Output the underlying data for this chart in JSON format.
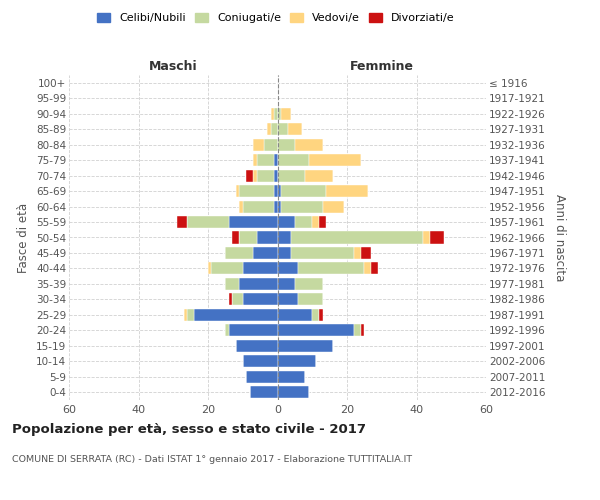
{
  "age_groups": [
    "0-4",
    "5-9",
    "10-14",
    "15-19",
    "20-24",
    "25-29",
    "30-34",
    "35-39",
    "40-44",
    "45-49",
    "50-54",
    "55-59",
    "60-64",
    "65-69",
    "70-74",
    "75-79",
    "80-84",
    "85-89",
    "90-94",
    "95-99",
    "100+"
  ],
  "birth_years": [
    "2012-2016",
    "2007-2011",
    "2002-2006",
    "1997-2001",
    "1992-1996",
    "1987-1991",
    "1982-1986",
    "1977-1981",
    "1972-1976",
    "1967-1971",
    "1962-1966",
    "1957-1961",
    "1952-1956",
    "1947-1951",
    "1942-1946",
    "1937-1941",
    "1932-1936",
    "1927-1931",
    "1922-1926",
    "1917-1921",
    "≤ 1916"
  ],
  "maschi": {
    "celibi": [
      8,
      9,
      10,
      12,
      14,
      24,
      10,
      11,
      10,
      7,
      6,
      14,
      1,
      1,
      1,
      1,
      0,
      0,
      0,
      0,
      0
    ],
    "coniugati": [
      0,
      0,
      0,
      0,
      1,
      2,
      3,
      4,
      9,
      8,
      5,
      12,
      9,
      10,
      5,
      5,
      4,
      2,
      1,
      0,
      0
    ],
    "vedovi": [
      0,
      0,
      0,
      0,
      0,
      1,
      0,
      0,
      1,
      0,
      0,
      0,
      1,
      1,
      1,
      1,
      3,
      1,
      1,
      0,
      0
    ],
    "divorziati": [
      0,
      0,
      0,
      0,
      0,
      0,
      1,
      0,
      0,
      0,
      2,
      3,
      0,
      0,
      2,
      0,
      0,
      0,
      0,
      0,
      0
    ]
  },
  "femmine": {
    "nubili": [
      9,
      8,
      11,
      16,
      22,
      10,
      6,
      5,
      6,
      4,
      4,
      5,
      1,
      1,
      0,
      0,
      0,
      0,
      0,
      0,
      0
    ],
    "coniugate": [
      0,
      0,
      0,
      0,
      2,
      2,
      7,
      8,
      19,
      18,
      38,
      5,
      12,
      13,
      8,
      9,
      5,
      3,
      1,
      0,
      0
    ],
    "vedove": [
      0,
      0,
      0,
      0,
      0,
      0,
      0,
      0,
      2,
      2,
      2,
      2,
      6,
      12,
      8,
      15,
      8,
      4,
      3,
      0,
      0
    ],
    "divorziate": [
      0,
      0,
      0,
      0,
      1,
      1,
      0,
      0,
      2,
      3,
      4,
      2,
      0,
      0,
      0,
      0,
      0,
      0,
      0,
      0,
      0
    ]
  },
  "colors": {
    "celibi_nubili": "#4472C4",
    "coniugati": "#C5D9A0",
    "vedovi": "#FFD580",
    "divorziati": "#CC1111"
  },
  "xlim": 60,
  "title": "Popolazione per età, sesso e stato civile - 2017",
  "subtitle": "COMUNE DI SERRATA (RC) - Dati ISTAT 1° gennaio 2017 - Elaborazione TUTTITALIA.IT",
  "ylabel_left": "Fasce di età",
  "ylabel_right": "Anni di nascita",
  "xlabel_maschi": "Maschi",
  "xlabel_femmine": "Femmine",
  "background_color": "#ffffff",
  "grid_color": "#cccccc",
  "legend_labels": [
    "Celibi/Nubili",
    "Coniugati/e",
    "Vedovi/e",
    "Divorziati/e"
  ]
}
